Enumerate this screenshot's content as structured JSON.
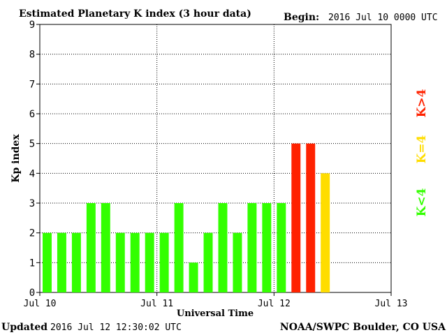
{
  "chart_data": {
    "type": "bar",
    "title": "Estimated Planetary K index (3 hour data)",
    "begin_label": "Begin:",
    "begin_value": "2016 Jul 10 0000 UTC",
    "xlabel": "Universal Time",
    "ylabel": "Kp index",
    "ylim": [
      0,
      9
    ],
    "yticks": [
      "0",
      "1",
      "2",
      "3",
      "4",
      "5",
      "6",
      "7",
      "8",
      "9"
    ],
    "xticks": [
      "Jul 10",
      "Jul 11",
      "Jul 12",
      "Jul 13"
    ],
    "bar_interval_hours": 3,
    "values": [
      2,
      2,
      2,
      3,
      3,
      2,
      2,
      2,
      2,
      3,
      1,
      2,
      3,
      2,
      3,
      3,
      3,
      5,
      5,
      4
    ],
    "grid": "dotted",
    "legend": {
      "placement": "right",
      "entries": [
        {
          "label": "K<4",
          "color": "#33ff00"
        },
        {
          "label": "K=4",
          "color": "#ffdd00"
        },
        {
          "label": "K>4",
          "color": "#ff2200"
        }
      ]
    },
    "colors": {
      "below_4": "#33ff00",
      "equal_4": "#ffdd00",
      "above_4": "#ff2200"
    }
  },
  "footer": {
    "updated_label": "Updated",
    "updated_value": "2016 Jul 12 12:30:02 UTC",
    "credit": "NOAA/SWPC Boulder, CO USA"
  }
}
